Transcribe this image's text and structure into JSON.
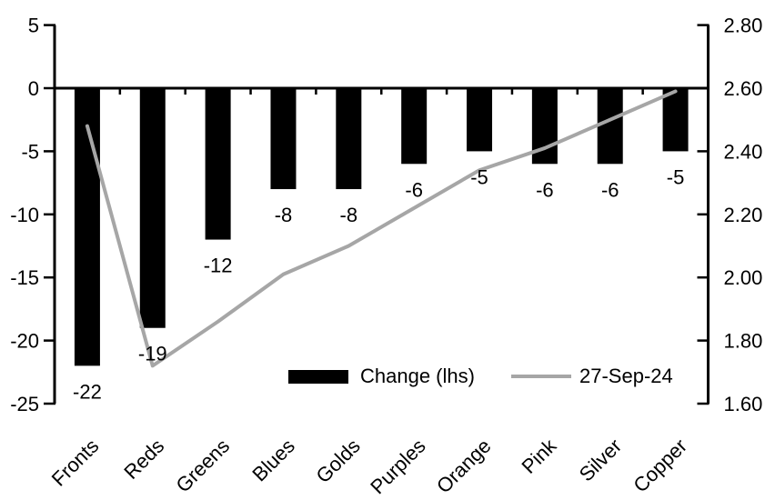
{
  "chart_data": {
    "type": "combo",
    "title": "",
    "categories": [
      "Fronts",
      "Reds",
      "Greens",
      "Blues",
      "Golds",
      "Purples",
      "Orange",
      "Pink",
      "Silver",
      "Copper"
    ],
    "series": [
      {
        "name": "Change (lhs)",
        "type": "bar",
        "axis": "left",
        "color": "#000000",
        "values": [
          -22,
          -19,
          -12,
          -8,
          -8,
          -6,
          -5,
          -6,
          -6,
          -5
        ],
        "labels": [
          "-22",
          "-19",
          "-12",
          "-8",
          "-8",
          "-6",
          "-5",
          "-6",
          "-6",
          "-5"
        ]
      },
      {
        "name": "27-Sep-24",
        "type": "line",
        "axis": "right",
        "color": "#a6a6a6",
        "values": [
          2.48,
          1.72,
          1.86,
          2.01,
          2.1,
          2.22,
          2.34,
          2.41,
          2.5,
          2.59
        ]
      }
    ],
    "left_axis": {
      "min": -25,
      "max": 5,
      "step": 5,
      "ticks": [
        "5",
        "0",
        "-5",
        "-10",
        "-15",
        "-20",
        "-25"
      ]
    },
    "right_axis": {
      "min": 1.6,
      "max": 2.8,
      "step": 0.2,
      "ticks": [
        "2.80",
        "2.60",
        "2.40",
        "2.20",
        "2.00",
        "1.80",
        "1.60"
      ]
    },
    "grid": false,
    "legend_position": "bottom-center-inside",
    "colors": {
      "background": "#ffffff",
      "axis": "#000000",
      "text": "#000000",
      "bar": "#000000",
      "line": "#a6a6a6"
    }
  },
  "legend": {
    "bar_label": "Change (lhs)",
    "line_label": "27-Sep-24"
  }
}
